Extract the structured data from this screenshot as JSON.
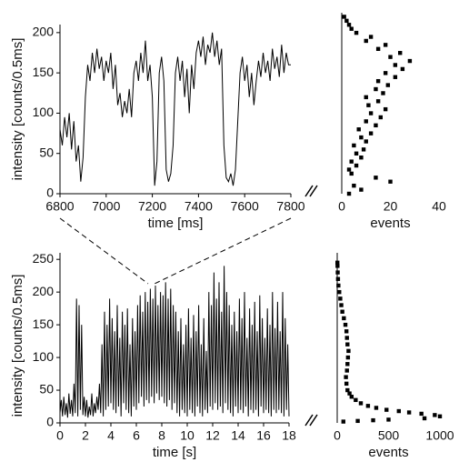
{
  "chart_data": [
    {
      "type": "line",
      "x_label": "time [ms]",
      "y_label": "intensity [counts/0.5ms]",
      "color": "#000000",
      "x": [
        6800,
        6810,
        6820,
        6830,
        6840,
        6850,
        6860,
        6870,
        6880,
        6890,
        6900,
        6910,
        6920,
        6930,
        6940,
        6950,
        6960,
        6970,
        6980,
        6990,
        7000,
        7010,
        7020,
        7030,
        7040,
        7050,
        7060,
        7070,
        7080,
        7090,
        7100,
        7110,
        7120,
        7130,
        7140,
        7150,
        7160,
        7170,
        7180,
        7190,
        7200,
        7210,
        7220,
        7230,
        7240,
        7250,
        7260,
        7270,
        7280,
        7290,
        7300,
        7310,
        7320,
        7330,
        7340,
        7350,
        7360,
        7370,
        7380,
        7390,
        7400,
        7410,
        7420,
        7430,
        7440,
        7450,
        7460,
        7470,
        7480,
        7490,
        7500,
        7510,
        7520,
        7530,
        7540,
        7550,
        7560,
        7570,
        7580,
        7590,
        7600,
        7610,
        7620,
        7630,
        7640,
        7650,
        7660,
        7670,
        7680,
        7690,
        7700,
        7710,
        7720,
        7730,
        7740,
        7750,
        7760,
        7770,
        7780,
        7790,
        7800
      ],
      "values": [
        80,
        60,
        95,
        70,
        100,
        55,
        90,
        40,
        60,
        15,
        45,
        120,
        160,
        140,
        175,
        150,
        180,
        155,
        170,
        140,
        165,
        150,
        175,
        130,
        160,
        110,
        125,
        95,
        115,
        100,
        130,
        95,
        150,
        165,
        140,
        175,
        150,
        190,
        140,
        160,
        120,
        10,
        40,
        150,
        170,
        140,
        30,
        15,
        25,
        60,
        150,
        170,
        140,
        165,
        120,
        155,
        100,
        160,
        130,
        175,
        190,
        170,
        195,
        160,
        185,
        175,
        200,
        170,
        190,
        160,
        180,
        60,
        20,
        15,
        25,
        10,
        30,
        90,
        150,
        170,
        140,
        160,
        120,
        150,
        110,
        140,
        165,
        145,
        175,
        150,
        165,
        140,
        180,
        155,
        170,
        145,
        185,
        150,
        175,
        160,
        160
      ],
      "xlim": [
        6800,
        7800
      ],
      "xticks": [
        6800,
        7000,
        7200,
        7400,
        7600,
        7800
      ],
      "ylim": [
        0,
        210
      ],
      "yticks": [
        0,
        50,
        100,
        150,
        200
      ]
    },
    {
      "type": "scatter",
      "x_label": "events",
      "color": "#000000",
      "x": [
        3,
        8,
        5,
        20,
        14,
        4,
        3,
        6,
        4,
        8,
        6,
        9,
        5,
        10,
        8,
        12,
        7,
        14,
        10,
        16,
        12,
        18,
        11,
        15,
        10,
        17,
        14,
        19,
        15,
        22,
        18,
        25,
        22,
        28,
        20,
        24,
        15,
        18,
        10,
        12,
        6,
        4,
        3,
        2,
        1
      ],
      "values": [
        0,
        5,
        10,
        15,
        20,
        25,
        30,
        35,
        40,
        45,
        50,
        55,
        60,
        65,
        70,
        75,
        80,
        85,
        90,
        95,
        100,
        105,
        110,
        115,
        120,
        125,
        130,
        135,
        140,
        145,
        150,
        155,
        160,
        165,
        170,
        175,
        180,
        185,
        190,
        195,
        200,
        205,
        210,
        215,
        220
      ],
      "xlim": [
        0,
        40
      ],
      "xticks": [
        0,
        20,
        40
      ],
      "ylim": [
        0,
        225
      ]
    },
    {
      "type": "line",
      "x_label": "time [s]",
      "y_label": "intensity [counts/0.5ms]",
      "color": "#000000",
      "x": [
        0,
        0.1,
        0.2,
        0.3,
        0.4,
        0.5,
        0.6,
        0.7,
        0.8,
        0.9,
        1,
        1.1,
        1.2,
        1.3,
        1.4,
        1.5,
        1.6,
        1.7,
        1.8,
        1.9,
        2,
        2.1,
        2.2,
        2.3,
        2.4,
        2.5,
        2.6,
        2.7,
        2.8,
        2.9,
        3,
        3.1,
        3.2,
        3.3,
        3.4,
        3.5,
        3.6,
        3.7,
        3.8,
        3.9,
        4,
        4.1,
        4.2,
        4.3,
        4.4,
        4.5,
        4.6,
        4.7,
        4.8,
        4.9,
        5,
        5.1,
        5.2,
        5.3,
        5.4,
        5.5,
        5.6,
        5.7,
        5.8,
        5.9,
        6,
        6.1,
        6.2,
        6.3,
        6.4,
        6.5,
        6.6,
        6.7,
        6.8,
        6.9,
        7,
        7.1,
        7.2,
        7.3,
        7.4,
        7.5,
        7.6,
        7.7,
        7.8,
        7.9,
        8,
        8.1,
        8.2,
        8.3,
        8.4,
        8.5,
        8.6,
        8.7,
        8.8,
        8.9,
        9,
        9.1,
        9.2,
        9.3,
        9.4,
        9.5,
        9.6,
        9.7,
        9.8,
        9.9,
        10,
        10.1,
        10.2,
        10.3,
        10.4,
        10.5,
        10.6,
        10.7,
        10.8,
        10.9,
        11,
        11.1,
        11.2,
        11.3,
        11.4,
        11.5,
        11.6,
        11.7,
        11.8,
        11.9,
        12,
        12.1,
        12.2,
        12.3,
        12.4,
        12.5,
        12.6,
        12.7,
        12.8,
        12.9,
        13,
        13.1,
        13.2,
        13.3,
        13.4,
        13.5,
        13.6,
        13.7,
        13.8,
        13.9,
        14,
        14.1,
        14.2,
        14.3,
        14.4,
        14.5,
        14.6,
        14.7,
        14.8,
        14.9,
        15,
        15.1,
        15.2,
        15.3,
        15.4,
        15.5,
        15.6,
        15.7,
        15.8,
        15.9,
        16,
        16.1,
        16.2,
        16.3,
        16.4,
        16.5,
        16.6,
        16.7,
        16.8,
        16.9,
        17,
        17.1,
        17.2,
        17.3,
        17.4,
        17.5,
        17.6,
        17.7,
        17.8,
        17.9,
        18
      ],
      "values": [
        15,
        35,
        10,
        40,
        12,
        30,
        8,
        45,
        14,
        35,
        10,
        60,
        15,
        190,
        10,
        180,
        20,
        150,
        12,
        40,
        10,
        35,
        8,
        25,
        12,
        45,
        10,
        30,
        15,
        40,
        20,
        60,
        15,
        120,
        10,
        170,
        20,
        150,
        25,
        190,
        30,
        160,
        20,
        140,
        15,
        180,
        25,
        130,
        10,
        170,
        30,
        150,
        20,
        175,
        15,
        120,
        10,
        160,
        25,
        140,
        20,
        180,
        30,
        195,
        40,
        170,
        25,
        200,
        35,
        185,
        30,
        205,
        40,
        190,
        30,
        210,
        45,
        180,
        35,
        200,
        40,
        195,
        30,
        215,
        25,
        190,
        35,
        205,
        20,
        180,
        30,
        170,
        15,
        140,
        10,
        160,
        20,
        120,
        15,
        150,
        10,
        175,
        20,
        130,
        15,
        165,
        10,
        140,
        25,
        180,
        15,
        120,
        10,
        160,
        20,
        110,
        15,
        200,
        25,
        180,
        20,
        230,
        30,
        190,
        20,
        215,
        25,
        170,
        15,
        240,
        30,
        200,
        20,
        180,
        15,
        150,
        10,
        170,
        25,
        140,
        15,
        190,
        20,
        160,
        15,
        200,
        25,
        130,
        10,
        175,
        20,
        150,
        15,
        185,
        20,
        140,
        10,
        195,
        25,
        160,
        15,
        130,
        20,
        175,
        15,
        150,
        10,
        200,
        20,
        145,
        15,
        185,
        20,
        140,
        15,
        200,
        10,
        160,
        20,
        120,
        10
      ],
      "xlim": [
        0,
        18
      ],
      "xticks": [
        0,
        2,
        4,
        6,
        8,
        10,
        12,
        14,
        16,
        18
      ],
      "ylim": [
        0,
        260
      ],
      "yticks": [
        0,
        50,
        100,
        150,
        200,
        250
      ]
    },
    {
      "type": "scatter",
      "x_label": "events",
      "color": "#000000",
      "x": [
        60,
        200,
        350,
        500,
        850,
        1000,
        950,
        820,
        700,
        600,
        480,
        380,
        300,
        230,
        180,
        140,
        120,
        100,
        90,
        85,
        95,
        100,
        105,
        110,
        100,
        95,
        90,
        80,
        65,
        50,
        40,
        30,
        20,
        12,
        8,
        5,
        3,
        2
      ],
      "values": [
        2,
        3,
        4,
        5,
        7,
        10,
        12,
        14,
        16,
        18,
        20,
        23,
        26,
        30,
        35,
        40,
        45,
        50,
        60,
        70,
        80,
        90,
        100,
        110,
        120,
        130,
        140,
        150,
        160,
        170,
        180,
        190,
        200,
        210,
        220,
        230,
        240,
        245
      ],
      "xlim": [
        0,
        1000
      ],
      "xticks": [
        0,
        500,
        1000
      ],
      "ylim": [
        0,
        260
      ]
    }
  ]
}
